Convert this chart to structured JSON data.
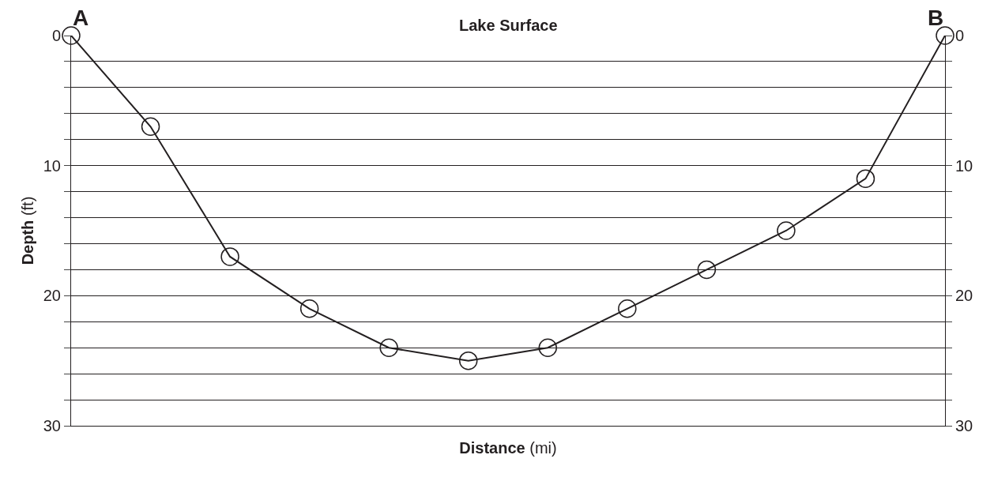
{
  "chart_data": {
    "type": "line",
    "title": "Lake Surface",
    "xlabel": "Distance (mi)",
    "ylabel": "Depth (ft)",
    "annotations": [
      "A",
      "B"
    ],
    "categories": [
      null,
      null,
      null,
      null,
      null,
      null,
      null,
      null,
      null,
      null,
      null,
      null
    ],
    "values": [
      0,
      7,
      17,
      21,
      24,
      25,
      24,
      21,
      18,
      15,
      11,
      0
    ],
    "color": "#231f20",
    "marker": "circle",
    "line_style": "solid",
    "ylim": [
      30,
      0
    ],
    "yticks": [
      0,
      {
        "value": 2,
        "label": null
      },
      {
        "value": 4,
        "label": null
      },
      {
        "value": 6,
        "label": null
      },
      {
        "value": 8,
        "label": null
      },
      10,
      {
        "value": 12,
        "label": null
      },
      {
        "value": 14,
        "label": null
      },
      {
        "value": 16,
        "label": null
      },
      {
        "value": 18,
        "label": null
      },
      20,
      {
        "value": 22,
        "label": null
      },
      {
        "value": 24,
        "label": null
      },
      {
        "value": 26,
        "label": null
      },
      {
        "value": 28,
        "label": null
      },
      30
    ],
    "y2lim": [
      30,
      0
    ],
    "y2ticks": [
      0,
      {
        "value": 2,
        "label": null
      },
      {
        "value": 4,
        "label": null
      },
      {
        "value": 6,
        "label": null
      },
      {
        "value": 8,
        "label": null
      },
      10,
      {
        "value": 12,
        "label": null
      },
      {
        "value": 14,
        "label": null
      },
      {
        "value": 16,
        "label": null
      },
      {
        "value": 18,
        "label": null
      },
      20,
      {
        "value": 22,
        "label": null
      },
      {
        "value": 24,
        "label": null
      },
      {
        "value": 26,
        "label": null
      },
      {
        "value": 28,
        "label": null
      },
      30
    ],
    "tick_labels": "y",
    "grid": "y"
  }
}
